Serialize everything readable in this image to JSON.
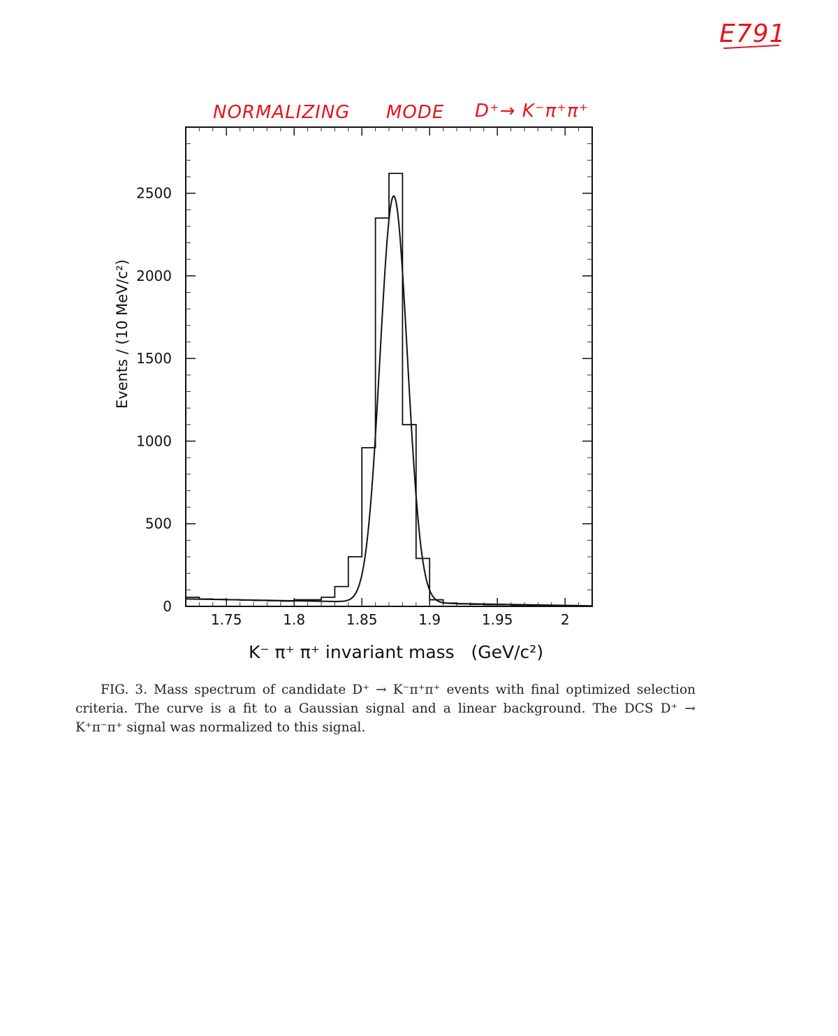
{
  "annotations": {
    "tag": "E791",
    "title_line": [
      "NORMALIZING",
      "MODE",
      "D⁺→ K⁻π⁺π⁺"
    ]
  },
  "chart_data": {
    "type": "histogram",
    "xlabel": "K⁻ π⁺ π⁺ invariant mass   (GeV/c²)",
    "ylabel": "Events / (10 MeV/c²)",
    "xlim": [
      1.72,
      2.02
    ],
    "ylim": [
      0,
      2900
    ],
    "xticks": [
      1.75,
      1.8,
      1.85,
      1.9,
      1.95,
      2
    ],
    "xtick_labels": [
      "1.75",
      "1.8",
      "1.85",
      "1.9",
      "1.95",
      "2"
    ],
    "yticks": [
      0,
      500,
      1000,
      1500,
      2000,
      2500
    ],
    "ytick_labels": [
      "0",
      "500",
      "1000",
      "1500",
      "2000",
      "2500"
    ],
    "bin_width": 0.01,
    "bin_edges": [
      1.72,
      1.73,
      1.74,
      1.75,
      1.76,
      1.77,
      1.78,
      1.79,
      1.8,
      1.81,
      1.82,
      1.83,
      1.84,
      1.85,
      1.86,
      1.87,
      1.88,
      1.89,
      1.9,
      1.91,
      1.92,
      1.93,
      1.94,
      1.95,
      1.96,
      1.97,
      1.98,
      1.99,
      2.0,
      2.01,
      2.02
    ],
    "bin_counts": [
      55,
      45,
      42,
      40,
      38,
      36,
      34,
      32,
      40,
      40,
      55,
      120,
      300,
      960,
      2350,
      2620,
      1100,
      290,
      40,
      20,
      15,
      12,
      10,
      10,
      8,
      8,
      6,
      5,
      5,
      3
    ],
    "fit": {
      "model": "Gaussian signal + linear background",
      "mean": 1.8735,
      "sigma": 0.0101,
      "amplitude": 2460,
      "background_at_xmin": 45,
      "background_slope": -140
    }
  },
  "caption": {
    "text": "FIG. 3. Mass spectrum of candidate D⁺ → K⁻π⁺π⁺ events with final optimized selection criteria. The curve is a fit to a Gaussian signal and a linear background. The DCS D⁺ → K⁺π⁻π⁺ signal was normalized to this signal."
  }
}
